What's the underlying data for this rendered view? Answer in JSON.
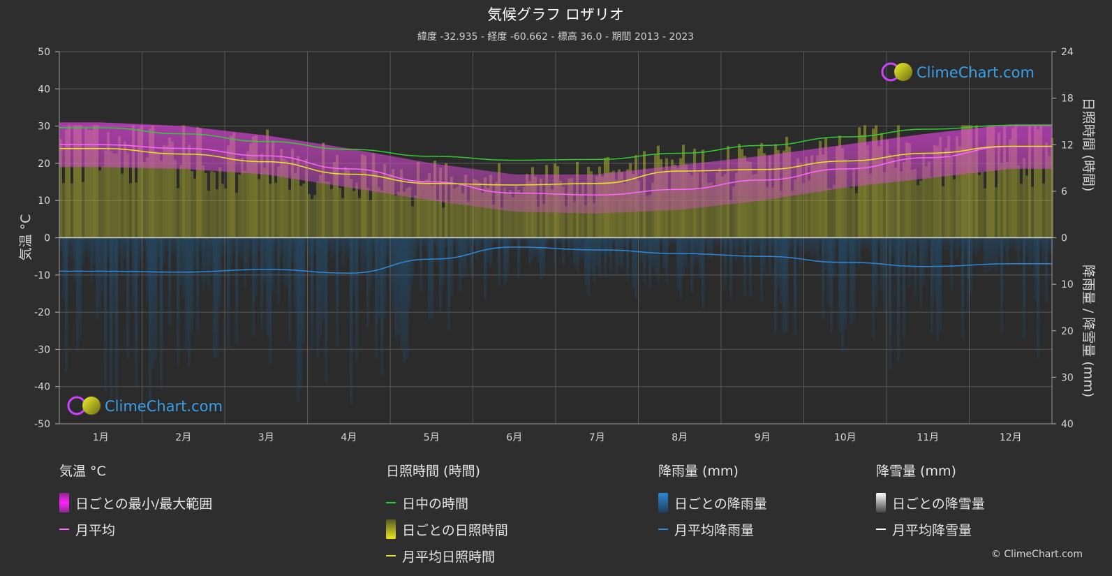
{
  "chart_data": {
    "type": "area",
    "title": "気候グラフ ロザリオ",
    "subtitle": "緯度 -32.935 - 経度 -60.662 - 標高 36.0 - 期間 2013 - 2023",
    "categories": [
      "1月",
      "2月",
      "3月",
      "4月",
      "5月",
      "6月",
      "7月",
      "8月",
      "9月",
      "10月",
      "11月",
      "12月"
    ],
    "y_left": {
      "label": "気温 °C",
      "range": [
        -50,
        50
      ],
      "ticks": [
        50,
        40,
        30,
        20,
        10,
        0,
        -10,
        -20,
        -30,
        -40,
        -50
      ]
    },
    "y_right_top": {
      "label": "日照時間 (時間)",
      "range": [
        0,
        24
      ],
      "ticks": [
        24,
        18,
        12,
        6,
        0
      ]
    },
    "y_right_bottom": {
      "label": "降雨量 / 降雪量 (mm)",
      "range": [
        0,
        40
      ],
      "ticks": [
        0,
        10,
        20,
        30,
        40
      ]
    },
    "series": [
      {
        "name": "日中の時間",
        "color": "#33cc33",
        "values": [
          14.2,
          13.4,
          12.4,
          11.4,
          10.5,
          10.0,
          10.1,
          10.9,
          11.9,
          13.0,
          14.0,
          14.5
        ]
      },
      {
        "name": "月平均",
        "color": "#ff66ff",
        "values": [
          25.0,
          24.0,
          22.0,
          18.5,
          15.0,
          12.0,
          11.5,
          13.0,
          15.5,
          18.5,
          21.5,
          24.5
        ]
      },
      {
        "name": "月平均日照時間",
        "color": "#e8e820",
        "values": [
          11.5,
          10.8,
          9.8,
          8.2,
          7.0,
          6.8,
          7.0,
          8.6,
          8.8,
          9.9,
          10.9,
          11.8
        ]
      },
      {
        "name": "月平均降雨量",
        "color": "#2f88d8",
        "values": [
          7.2,
          7.4,
          6.8,
          7.6,
          4.6,
          2.0,
          2.6,
          3.4,
          4.0,
          5.3,
          6.2,
          5.6
        ]
      },
      {
        "name": "日ごとの最小/最大範囲",
        "color": "#dd33dd",
        "min": [
          19.0,
          18.5,
          17.0,
          13.5,
          10.0,
          7.0,
          6.5,
          7.5,
          10.0,
          13.5,
          16.0,
          18.5
        ],
        "max": [
          31.0,
          30.0,
          27.5,
          24.0,
          20.0,
          17.0,
          17.0,
          19.5,
          22.0,
          25.0,
          28.0,
          30.5
        ]
      }
    ],
    "grid": true
  },
  "legend": {
    "temp": {
      "title": "気温 °C",
      "range": "日ごとの最小/最大範囲",
      "avg": "月平均"
    },
    "sun": {
      "title": "日照時間 (時間)",
      "daylight": "日中の時間",
      "daily": "日ごとの日照時間",
      "avg": "月平均日照時間"
    },
    "rain": {
      "title": "降雨量 (mm)",
      "daily": "日ごとの降雨量",
      "avg": "月平均降雨量"
    },
    "snow": {
      "title": "降雪量 (mm)",
      "daily": "日ごとの降雪量",
      "avg": "月平均降雪量"
    }
  },
  "branding": {
    "logo": "ClimeChart.com",
    "copyright": "© ClimeChart.com"
  },
  "colors": {
    "background": "#2e2e2e",
    "plot": "#2b2b2b",
    "grid": "#5a5a5a",
    "zero_line": "#cccccc"
  }
}
